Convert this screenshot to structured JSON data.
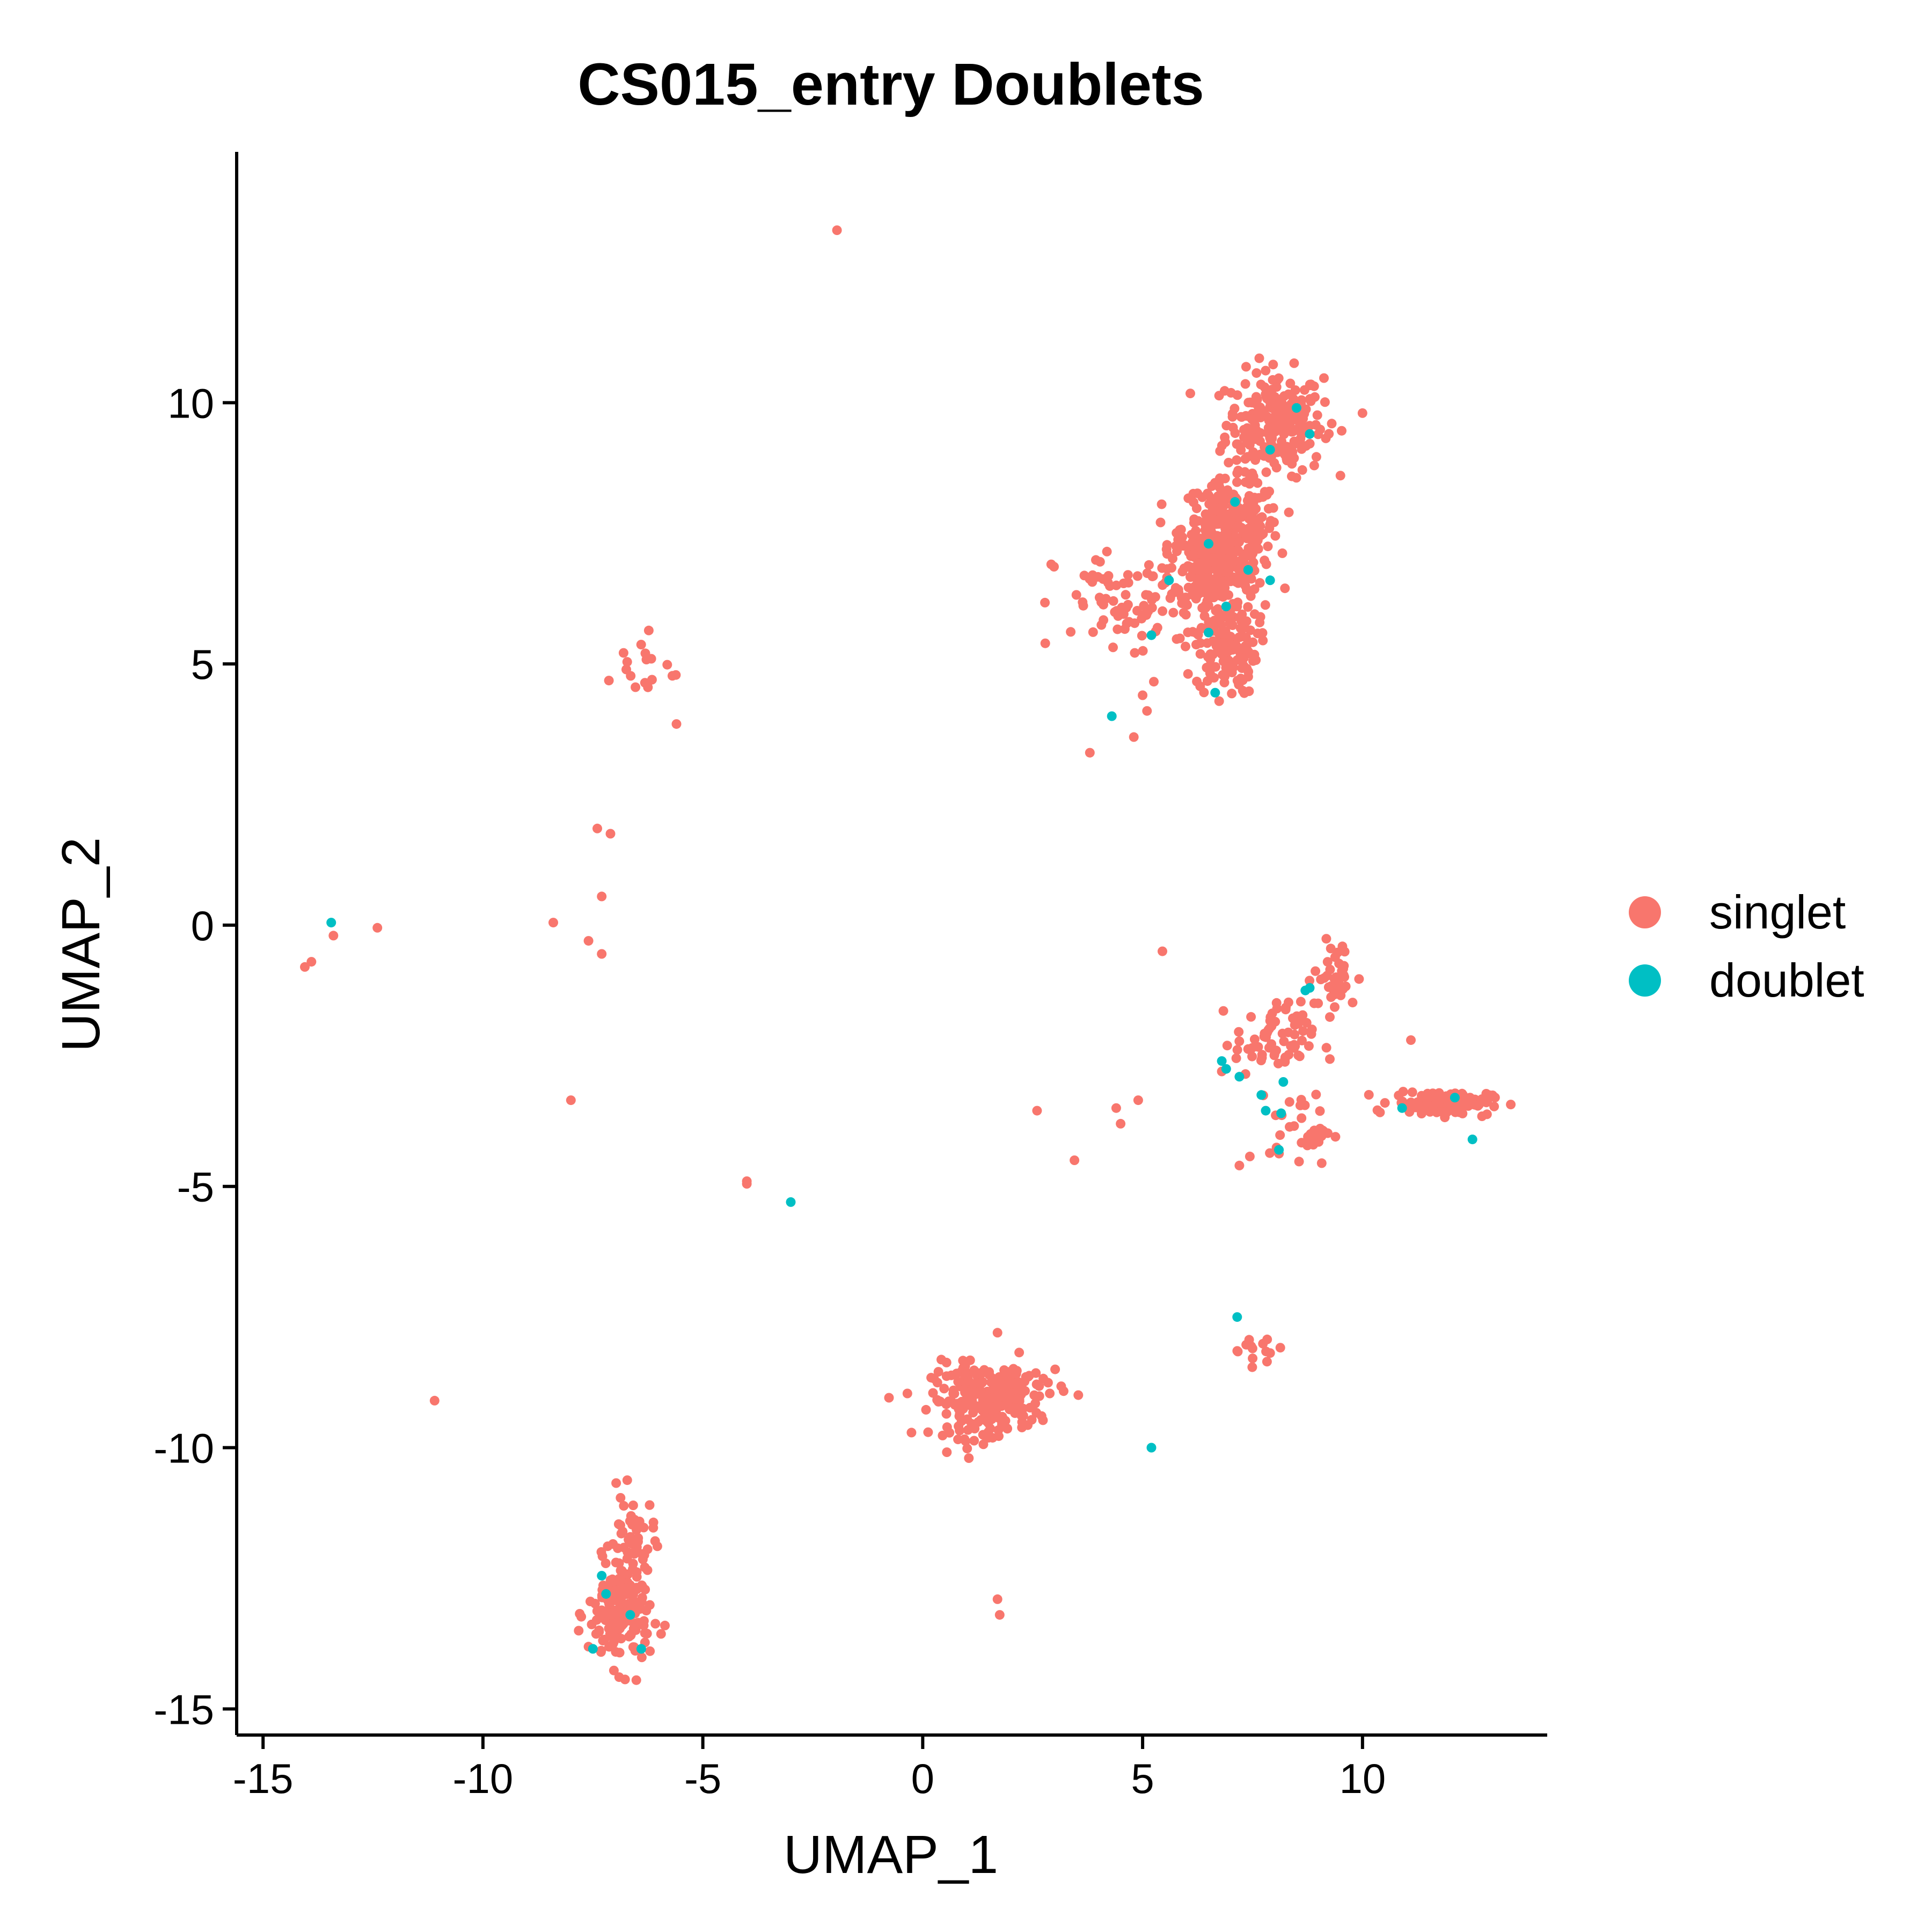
{
  "chart_data": {
    "type": "scatter",
    "title": "CS015_entry Doublets",
    "xlabel": "UMAP_1",
    "ylabel": "UMAP_2",
    "xlim": [
      -15.6,
      14.2
    ],
    "ylim": [
      -15.5,
      14.8
    ],
    "xticks": [
      -15,
      -10,
      -5,
      0,
      5,
      10
    ],
    "yticks": [
      -15,
      -10,
      -5,
      0,
      5,
      10
    ],
    "grid": false,
    "legend_position": "right",
    "series": [
      {
        "name": "singlet",
        "color": "#F8766D",
        "clusters": [
          {
            "cx": 8.0,
            "cy": 9.6,
            "sx": 0.55,
            "sy": 0.5,
            "n": 240
          },
          {
            "cx": 7.0,
            "cy": 7.6,
            "sx": 0.55,
            "sy": 0.45,
            "n": 260
          },
          {
            "cx": 6.6,
            "cy": 6.8,
            "sx": 0.5,
            "sy": 0.4,
            "n": 200
          },
          {
            "cx": 6.9,
            "cy": 5.4,
            "sx": 0.35,
            "sy": 0.5,
            "n": 140
          },
          {
            "cx": 4.8,
            "cy": 6.1,
            "sx": 0.9,
            "sy": 0.55,
            "n": 90
          },
          {
            "cx": 1.3,
            "cy": -9.1,
            "sx": 0.55,
            "sy": 0.35,
            "n": 190
          },
          {
            "cx": 2.3,
            "cy": -8.9,
            "sx": 0.45,
            "sy": 0.3,
            "n": 50
          },
          {
            "cx": -6.9,
            "cy": -13.2,
            "sx": 0.35,
            "sy": 0.5,
            "n": 170
          },
          {
            "cx": -6.6,
            "cy": -11.8,
            "sx": 0.25,
            "sy": 0.45,
            "n": 50
          },
          {
            "cx": 11.8,
            "cy": -3.4,
            "sx": 0.55,
            "sy": 0.12,
            "n": 120
          },
          {
            "cx": 8.0,
            "cy": -2.2,
            "sx": 0.45,
            "sy": 0.35,
            "n": 70
          },
          {
            "cx": 9.4,
            "cy": -1.0,
            "sx": 0.25,
            "sy": 0.35,
            "n": 40
          },
          {
            "cx": 8.6,
            "cy": -3.9,
            "sx": 0.35,
            "sy": 0.35,
            "n": 35
          },
          {
            "cx": 7.6,
            "cy": -8.1,
            "sx": 0.3,
            "sy": 0.15,
            "n": 14
          },
          {
            "cx": -6.4,
            "cy": 4.9,
            "sx": 0.4,
            "sy": 0.35,
            "n": 18
          }
        ],
        "points": [
          [
            -1.95,
            13.3
          ],
          [
            -7.4,
            1.85
          ],
          [
            -7.1,
            1.75
          ],
          [
            -7.3,
            0.55
          ],
          [
            -7.6,
            -0.3
          ],
          [
            -7.3,
            -0.55
          ],
          [
            -8.4,
            0.05
          ],
          [
            -12.4,
            -0.05
          ],
          [
            -13.4,
            -0.2
          ],
          [
            -13.9,
            -0.7
          ],
          [
            -14.05,
            -0.8
          ],
          [
            -8.0,
            -3.35
          ],
          [
            -4.0,
            -4.9
          ],
          [
            -4.0,
            -4.95
          ],
          [
            -11.1,
            -9.1
          ],
          [
            -5.6,
            3.85
          ],
          [
            5.45,
            -0.5
          ],
          [
            2.6,
            -3.55
          ],
          [
            4.4,
            -3.5
          ],
          [
            4.5,
            -3.8
          ],
          [
            4.9,
            -3.35
          ],
          [
            3.45,
            -4.5
          ],
          [
            3.8,
            3.3
          ],
          [
            4.8,
            3.6
          ],
          [
            5.1,
            4.1
          ],
          [
            5.0,
            4.4
          ],
          [
            1.7,
            -12.9
          ],
          [
            1.75,
            -13.2
          ],
          [
            1.7,
            -7.8
          ],
          [
            11.1,
            -2.2
          ],
          [
            7.2,
            -4.6
          ],
          [
            6.8,
            -2.8
          ],
          [
            10.0,
            9.8
          ],
          [
            9.3,
            9.6
          ]
        ]
      },
      {
        "name": "doublet",
        "color": "#00BFC4",
        "points": [
          [
            -13.45,
            0.05
          ],
          [
            -3.0,
            -5.3
          ],
          [
            5.2,
            -10.0
          ],
          [
            4.3,
            4.0
          ],
          [
            6.65,
            4.45
          ],
          [
            5.2,
            5.55
          ],
          [
            6.5,
            5.6
          ],
          [
            5.6,
            6.6
          ],
          [
            7.4,
            6.8
          ],
          [
            7.9,
            6.6
          ],
          [
            7.1,
            8.1
          ],
          [
            6.5,
            7.3
          ],
          [
            6.9,
            6.1
          ],
          [
            8.8,
            9.4
          ],
          [
            8.5,
            9.9
          ],
          [
            7.9,
            9.1
          ],
          [
            7.15,
            -7.5
          ],
          [
            6.8,
            -2.6
          ],
          [
            6.9,
            -2.75
          ],
          [
            7.2,
            -2.9
          ],
          [
            7.7,
            -3.25
          ],
          [
            8.2,
            -3.0
          ],
          [
            7.8,
            -3.55
          ],
          [
            8.15,
            -3.6
          ],
          [
            8.1,
            -4.3
          ],
          [
            8.7,
            -1.25
          ],
          [
            8.8,
            -1.2
          ],
          [
            10.9,
            -3.5
          ],
          [
            12.1,
            -3.3
          ],
          [
            12.5,
            -4.1
          ],
          [
            -7.3,
            -12.45
          ],
          [
            -7.2,
            -12.8
          ],
          [
            -7.5,
            -13.85
          ],
          [
            -6.65,
            -13.2
          ],
          [
            -6.4,
            -13.85
          ]
        ]
      }
    ]
  }
}
